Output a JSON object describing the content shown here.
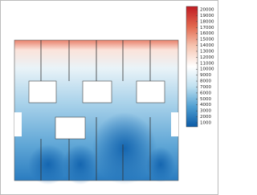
{
  "chart_data": {
    "type": "contour",
    "zlim": [
      1000,
      20000
    ],
    "zticks": [
      20000,
      19000,
      18000,
      17000,
      16000,
      15000,
      14000,
      13000,
      12000,
      11000,
      10000,
      9000,
      8000,
      7000,
      6000,
      5000,
      4000,
      3000,
      2000,
      1000
    ],
    "colormap": [
      "#0a5aa6",
      "#4f9fd2",
      "#bfe0f0",
      "#ffffff",
      "#f7c7b3",
      "#e2684e",
      "#c01b22"
    ]
  }
}
